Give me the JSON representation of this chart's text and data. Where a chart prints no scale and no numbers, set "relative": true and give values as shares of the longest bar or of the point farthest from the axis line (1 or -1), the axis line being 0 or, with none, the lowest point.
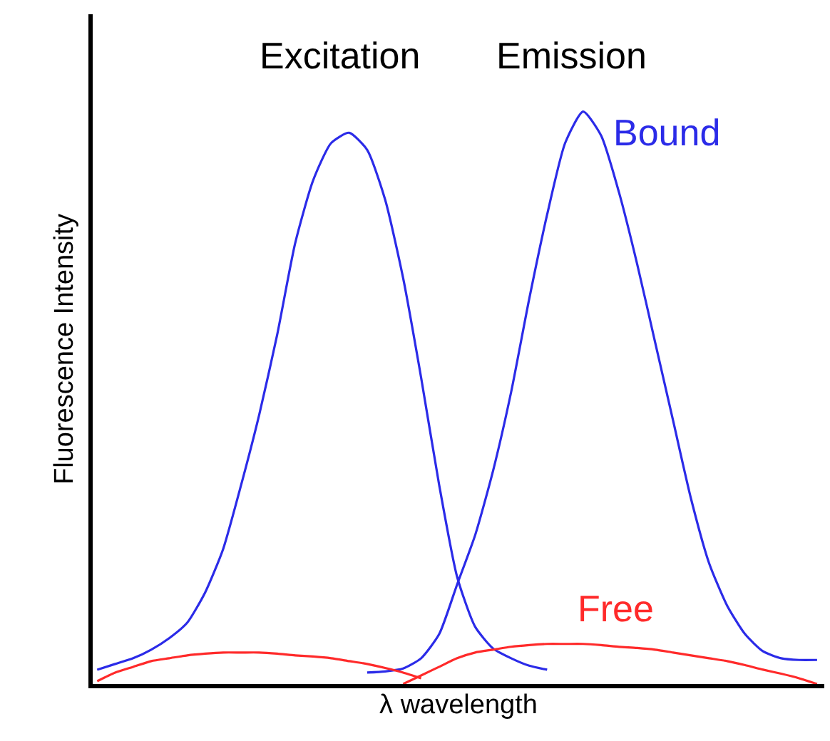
{
  "chart_data": {
    "type": "line",
    "relative": true,
    "xlabel": "λ wavelength",
    "ylabel": "Fluorescence Intensity",
    "categories": [
      null,
      null,
      null,
      null,
      null,
      null,
      null,
      null,
      null,
      null,
      null,
      null,
      null,
      null,
      null,
      null,
      null,
      null,
      null,
      null,
      null,
      null,
      null,
      null,
      null,
      null,
      null,
      null,
      null,
      null,
      null,
      null,
      null,
      null,
      null,
      null,
      null,
      null,
      null,
      null,
      null
    ],
    "annotations": [
      "Excitation",
      "Emission"
    ],
    "legend": false,
    "marker": "none",
    "line_style": "solid",
    "series": [
      {
        "color": "#2b2be8",
        "values": [
          0.025,
          0.035,
          0.045,
          0.06,
          0.08,
          0.107,
          0.16,
          0.236,
          0.348,
          0.47,
          0.61,
          0.77,
          0.88,
          0.945,
          0.963,
          0.933,
          0.846,
          0.709,
          0.535,
          0.348,
          0.187,
          0.1,
          0.062,
          0.045,
          0.032,
          0.025,
          null,
          null,
          null,
          null,
          null,
          null,
          null,
          null,
          null,
          null,
          null,
          null,
          null,
          null,
          null
        ]
      },
      {
        "name": "Bound",
        "color": "#2b2be8",
        "values": [
          null,
          null,
          null,
          null,
          null,
          null,
          null,
          null,
          null,
          null,
          null,
          null,
          null,
          null,
          null,
          0.02,
          0.022,
          0.027,
          0.045,
          0.087,
          0.174,
          0.26,
          0.373,
          0.51,
          0.672,
          0.82,
          0.945,
          1,
          0.958,
          0.858,
          0.734,
          0.597,
          0.46,
          0.323,
          0.211,
          0.137,
          0.087,
          0.057,
          0.045,
          0.042,
          0.042
        ]
      },
      {
        "color": "#ff2a2a",
        "values": [
          0.005,
          0.02,
          0.03,
          0.04,
          0.045,
          0.05,
          0.053,
          0.055,
          0.055,
          0.055,
          0.053,
          0.05,
          0.048,
          0.045,
          0.04,
          0.035,
          0.028,
          0.02,
          0.01,
          null,
          null,
          null,
          null,
          null,
          null,
          null,
          null,
          null,
          null,
          null,
          null,
          null,
          null,
          null,
          null,
          null,
          null,
          null,
          null,
          null,
          null
        ]
      },
      {
        "name": "Free",
        "color": "#ff2a2a",
        "values": [
          null,
          null,
          null,
          null,
          null,
          null,
          null,
          null,
          null,
          null,
          null,
          null,
          null,
          null,
          null,
          null,
          null,
          0.0,
          0.015,
          0.03,
          0.045,
          0.055,
          0.06,
          0.065,
          0.068,
          0.07,
          0.07,
          0.07,
          0.068,
          0.065,
          0.063,
          0.06,
          0.055,
          0.05,
          0.045,
          0.04,
          0.033,
          0.025,
          0.018,
          0.01,
          0.0
        ]
      }
    ]
  }
}
